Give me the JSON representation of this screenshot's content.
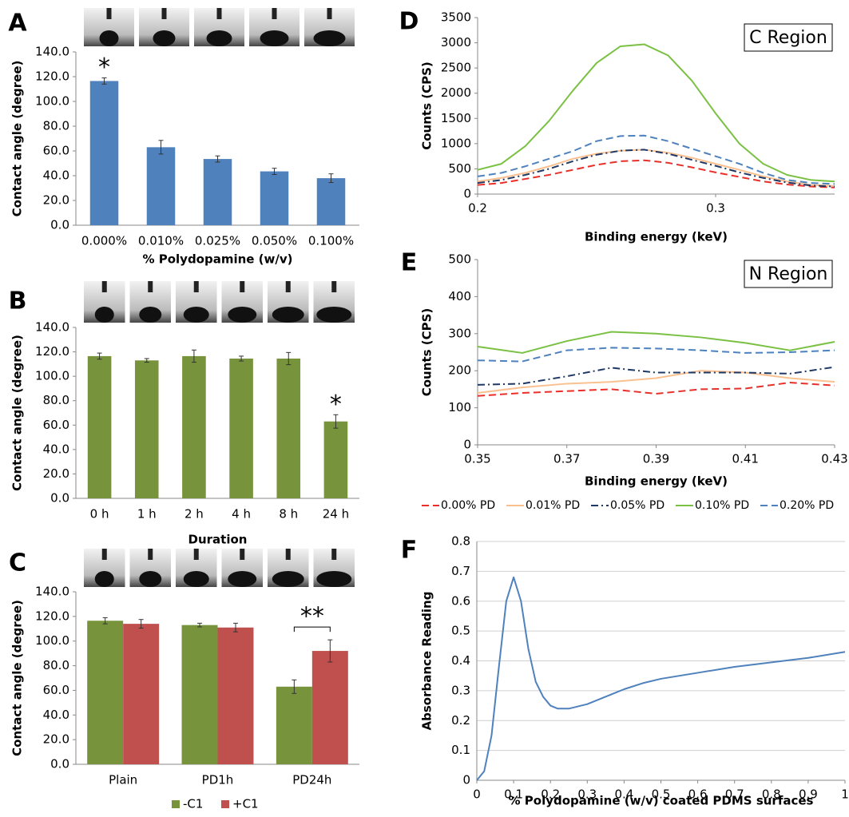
{
  "chart_data": [
    {
      "type": "bar",
      "panel_label": "A",
      "ylabel": "Contact angle (degree)",
      "xlabel": "% Polydopamine (w/v)",
      "categories": [
        "0.000%",
        "0.010%",
        "0.025%",
        "0.050%",
        "0.100%"
      ],
      "values": [
        116.5,
        63,
        53.5,
        43.5,
        38
      ],
      "errors": [
        2.5,
        5.5,
        2.5,
        2.5,
        3.5
      ],
      "color": "#4f81bd",
      "ylim": [
        0,
        140
      ],
      "yticks": [
        {
          "value": 0,
          "label": "0.0"
        },
        {
          "value": 20,
          "label": "20.0"
        },
        {
          "value": 40,
          "label": "40.0"
        },
        {
          "value": 60,
          "label": "60.0"
        },
        {
          "value": 80,
          "label": "80.0"
        },
        {
          "value": 100,
          "label": "100.0"
        },
        {
          "value": 120,
          "label": "120.0"
        },
        {
          "value": 140,
          "label": "140.0"
        }
      ],
      "annotation": "*"
    },
    {
      "type": "bar",
      "panel_label": "B",
      "ylabel": "Contact angle (degree)",
      "xlabel": "Duration",
      "categories": [
        "0 h",
        "1 h",
        "2 h",
        "4 h",
        "8 h",
        "24 h"
      ],
      "values": [
        116.5,
        113,
        116.5,
        114.5,
        114.5,
        63
      ],
      "errors": [
        2.5,
        1.5,
        5,
        2,
        5,
        5.5
      ],
      "color": "#77933c",
      "ylim": [
        0,
        140
      ],
      "yticks": [
        {
          "value": 0,
          "label": "0.0"
        },
        {
          "value": 20,
          "label": "20.0"
        },
        {
          "value": 40,
          "label": "40.0"
        },
        {
          "value": 60,
          "label": "60.0"
        },
        {
          "value": 80,
          "label": "80.0"
        },
        {
          "value": 100,
          "label": "100.0"
        },
        {
          "value": 120,
          "label": "120.0"
        },
        {
          "value": 140,
          "label": "140.0"
        }
      ],
      "annotation": "*"
    },
    {
      "type": "bar",
      "panel_label": "C",
      "ylabel": "Contact angle (degree)",
      "categories": [
        "Plain",
        "PD1h",
        "PD24h"
      ],
      "series": [
        {
          "name": "-C1",
          "color": "#77933c",
          "values": [
            116.5,
            113,
            63
          ],
          "errors": [
            2.5,
            1.5,
            5.5
          ]
        },
        {
          "name": "+C1",
          "color": "#c0504d",
          "values": [
            114,
            111,
            92
          ],
          "errors": [
            3.5,
            3.5,
            9
          ]
        }
      ],
      "ylim": [
        0,
        140
      ],
      "yticks": [
        {
          "value": 0,
          "label": "0.0"
        },
        {
          "value": 20,
          "label": "20.0"
        },
        {
          "value": 40,
          "label": "40.0"
        },
        {
          "value": 60,
          "label": "60.0"
        },
        {
          "value": 80,
          "label": "80.0"
        },
        {
          "value": 100,
          "label": "100.0"
        },
        {
          "value": 120,
          "label": "120.0"
        },
        {
          "value": 140,
          "label": "140.0"
        }
      ],
      "annotation": "**"
    },
    {
      "type": "line",
      "panel_label": "D",
      "box_title": "C Region",
      "ylabel": "Counts (CPS)",
      "xlabel": "Binding energy (keV)",
      "x": [
        0.2,
        0.21,
        0.22,
        0.23,
        0.24,
        0.25,
        0.26,
        0.27,
        0.28,
        0.29,
        0.3,
        0.31,
        0.32,
        0.33,
        0.34,
        0.35
      ],
      "series": [
        {
          "color": "#e8302a",
          "dash": "dashed",
          "values": [
            180,
            220,
            300,
            380,
            480,
            580,
            650,
            670,
            620,
            530,
            430,
            340,
            250,
            190,
            150,
            130
          ]
        },
        {
          "color": "#fac090",
          "dash": "solid",
          "values": [
            250,
            320,
            420,
            550,
            700,
            800,
            860,
            880,
            820,
            720,
            600,
            480,
            350,
            250,
            180,
            160
          ]
        },
        {
          "color": "#1f3864",
          "dash": "dashdot",
          "values": [
            220,
            280,
            380,
            500,
            650,
            780,
            860,
            880,
            800,
            680,
            560,
            430,
            320,
            230,
            170,
            150
          ]
        },
        {
          "color": "#7ac143",
          "dash": "solid",
          "values": [
            480,
            600,
            950,
            1450,
            2050,
            2600,
            2930,
            2970,
            2750,
            2250,
            1600,
            1000,
            600,
            380,
            280,
            250
          ]
        },
        {
          "color": "#4f81bd",
          "dash": "dashed",
          "values": [
            350,
            420,
            550,
            700,
            850,
            1050,
            1150,
            1160,
            1050,
            900,
            750,
            600,
            420,
            280,
            220,
            200
          ]
        }
      ],
      "xlim": [
        0.2,
        0.35
      ],
      "xticks": [
        0.2,
        0.3
      ],
      "ylim": [
        0,
        3500
      ],
      "yticks": [
        0,
        500,
        1000,
        1500,
        2000,
        2500,
        3000,
        3500
      ],
      "grid": false
    },
    {
      "type": "line",
      "panel_label": "E",
      "box_title": "N Region",
      "ylabel": "Counts (CPS)",
      "xlabel": "Binding energy (keV)",
      "x": [
        0.35,
        0.36,
        0.37,
        0.38,
        0.39,
        0.4,
        0.41,
        0.42,
        0.43
      ],
      "series": [
        {
          "name": "0.00% PD",
          "color": "#e8302a",
          "dash": "dashed",
          "values": [
            132,
            140,
            145,
            150,
            138,
            150,
            152,
            168,
            160
          ]
        },
        {
          "name": "0.01% PD",
          "color": "#fac090",
          "dash": "solid",
          "values": [
            140,
            155,
            165,
            170,
            180,
            200,
            195,
            180,
            170
          ]
        },
        {
          "name": "0.05% PD",
          "color": "#1f3864",
          "dash": "dashdot",
          "values": [
            162,
            165,
            185,
            208,
            195,
            195,
            195,
            192,
            210
          ]
        },
        {
          "name": "0.10% PD",
          "color": "#7ac143",
          "dash": "solid",
          "values": [
            265,
            248,
            280,
            305,
            300,
            290,
            275,
            255,
            278
          ]
        },
        {
          "name": "0.20% PD",
          "color": "#4f81bd",
          "dash": "dashed",
          "values": [
            228,
            225,
            255,
            262,
            260,
            255,
            248,
            250,
            255
          ]
        }
      ],
      "xlim": [
        0.35,
        0.43
      ],
      "xticks": [
        0.35,
        0.37,
        0.39,
        0.41,
        0.43
      ],
      "ylim": [
        0,
        500
      ],
      "yticks": [
        0,
        100,
        200,
        300,
        400,
        500
      ],
      "grid": false
    },
    {
      "type": "line",
      "panel_label": "F",
      "ylabel": "Absorbance Reading",
      "xlabel": "% Polydopamine (w/v) coated PDMS surfaces",
      "x": [
        0,
        0.02,
        0.04,
        0.06,
        0.08,
        0.1,
        0.12,
        0.14,
        0.16,
        0.18,
        0.2,
        0.22,
        0.25,
        0.3,
        0.35,
        0.4,
        0.45,
        0.5,
        0.6,
        0.7,
        0.8,
        0.9,
        1
      ],
      "values": [
        0,
        0.03,
        0.15,
        0.38,
        0.6,
        0.68,
        0.6,
        0.44,
        0.33,
        0.28,
        0.25,
        0.24,
        0.24,
        0.255,
        0.28,
        0.305,
        0.325,
        0.34,
        0.36,
        0.38,
        0.395,
        0.41,
        0.43
      ],
      "color": "#4f81bd",
      "xlim": [
        0,
        1
      ],
      "xticks": [
        0,
        0.1,
        0.2,
        0.3,
        0.4,
        0.5,
        0.6,
        0.7,
        0.8,
        0.9,
        1
      ],
      "ylim": [
        0,
        0.8
      ],
      "yticks": [
        0,
        0.1,
        0.2,
        0.3,
        0.4,
        0.5,
        0.6,
        0.7,
        0.8
      ],
      "grid": true
    }
  ]
}
